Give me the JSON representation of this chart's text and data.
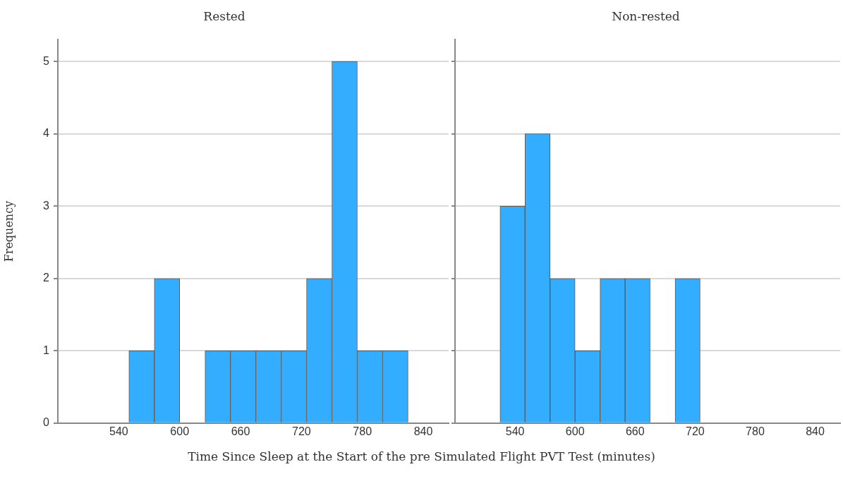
{
  "chart_data": [
    {
      "type": "histogram",
      "title": "Rested",
      "ylabel": "Frequency",
      "xlabel": "Time Since Sleep at the Start of the pre Simulated Flight PVT Test (minutes)",
      "bins": [
        550,
        575,
        600,
        625,
        650,
        675,
        700,
        725,
        750,
        775,
        800,
        825
      ],
      "values": [
        1,
        2,
        0,
        1,
        1,
        1,
        1,
        2,
        5,
        1,
        1
      ],
      "color": "#33adff",
      "xlim": [
        480,
        865
      ],
      "xticks": [
        540,
        600,
        660,
        720,
        780,
        840
      ],
      "ylim": [
        0,
        5.3
      ],
      "yticks": [
        0,
        1,
        2,
        3,
        4,
        5
      ],
      "grid": "y",
      "legend": false
    },
    {
      "type": "histogram",
      "title": "Non-rested",
      "bins": [
        525,
        550,
        575,
        600,
        625,
        650,
        675,
        700,
        725
      ],
      "values": [
        3,
        4,
        2,
        1,
        2,
        2,
        0,
        2
      ],
      "color": "#33adff",
      "xlim": [
        480,
        865
      ],
      "xticks": [
        540,
        600,
        660,
        720,
        780,
        840
      ],
      "ylim": [
        0,
        5.3
      ],
      "yticks": [
        0,
        1,
        2,
        3,
        4,
        5
      ],
      "grid": "y",
      "legend": false,
      "tick_labels": "x"
    }
  ]
}
